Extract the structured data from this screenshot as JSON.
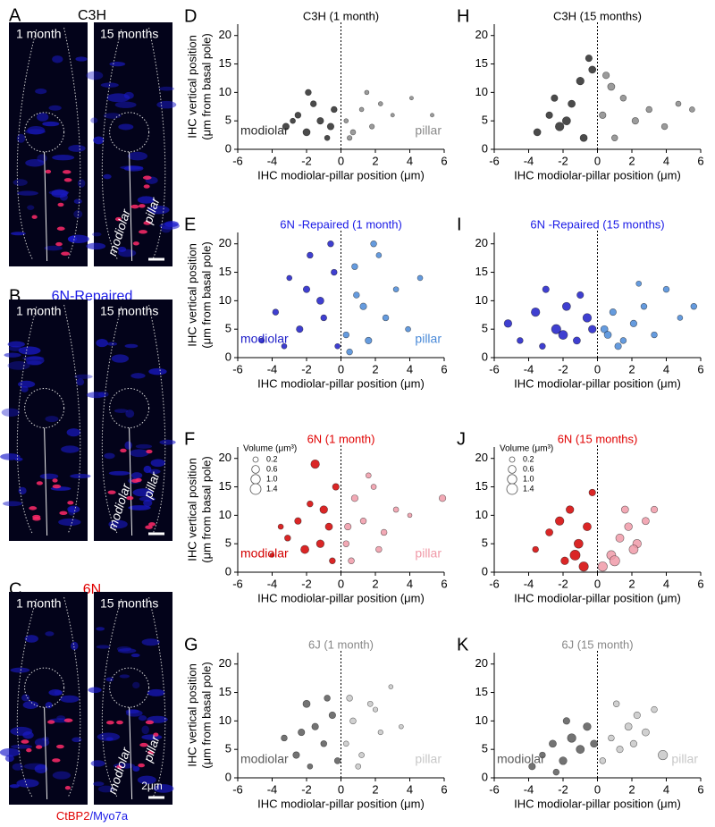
{
  "image_panels": [
    {
      "panel": "A",
      "title": "C3H",
      "left_label": "1 month",
      "right_label": "15 months",
      "annotations": [
        "modiolar",
        "pillar"
      ]
    },
    {
      "panel": "B",
      "title": "6N-Repaired",
      "left_label": "1 month",
      "right_label": "15 months",
      "annotations": [
        "modiolar",
        "pillar"
      ]
    },
    {
      "panel": "C",
      "title": "6N",
      "left_label": "1 month",
      "right_label": "15 months",
      "annotations": [
        "modiolar",
        "pillar"
      ],
      "scale_bar": "2μm"
    }
  ],
  "caption": {
    "red": "CtBP2",
    "blue": "/Myo7a"
  },
  "chart_data": [
    {
      "type": "scatter",
      "panel": "D",
      "title": "C3H (1 month)",
      "title_color": "#000000",
      "ylabel": "IHC vertical position",
      "ylabel_sub": "(μm from basal pole)",
      "xlabel": "IHC modiolar-pillar position (μm)",
      "xlim": [
        -6,
        6
      ],
      "ylim": [
        0,
        22
      ],
      "xticks": [
        -6,
        -4,
        -2,
        0,
        2,
        4,
        6
      ],
      "yticks": [
        0,
        5,
        10,
        15,
        20
      ],
      "series": [
        {
          "name": "modiolar",
          "color": "#2b2b2b",
          "x": [
            -3.2,
            -2.5,
            -2.0,
            -1.6,
            -1.2,
            -0.8,
            -0.4,
            -2.8,
            -1.9,
            -0.6
          ],
          "y": [
            4,
            6,
            3,
            8,
            5,
            2,
            7,
            5,
            10,
            4
          ],
          "sizes": [
            0.4,
            0.3,
            0.5,
            0.3,
            0.4,
            0.2,
            0.3,
            0.2,
            0.3,
            0.4
          ]
        },
        {
          "name": "pillar",
          "color": "#8a8a8a",
          "x": [
            0.3,
            0.7,
            1.2,
            1.8,
            2.3,
            3.0,
            4.1,
            5.3,
            0.5,
            1.5
          ],
          "y": [
            5,
            3,
            7,
            4,
            8,
            6,
            9,
            6,
            2,
            10
          ],
          "sizes": [
            0.1,
            0.2,
            0.1,
            0.15,
            0.1,
            0.05,
            0.05,
            0.05,
            0.15,
            0.1
          ]
        }
      ]
    },
    {
      "type": "scatter",
      "panel": "H",
      "title": "C3H (15 months)",
      "title_color": "#000000",
      "xlabel": "IHC modiolar-pillar position (μm)",
      "xlim": [
        -6,
        6
      ],
      "ylim": [
        0,
        22
      ],
      "xticks": [
        -6,
        -4,
        -2,
        0,
        2,
        4,
        6
      ],
      "yticks": [
        0,
        5,
        10,
        15,
        20
      ],
      "series": [
        {
          "color": "#2b2b2b",
          "x": [
            -3.5,
            -2.8,
            -2.2,
            -1.5,
            -1.0,
            -0.5,
            -0.3,
            -1.8,
            -2.5,
            -0.8
          ],
          "y": [
            3,
            6,
            4,
            8,
            12,
            16,
            14,
            5,
            9,
            2
          ],
          "sizes": [
            0.5,
            0.4,
            0.8,
            0.5,
            0.6,
            0.4,
            0.5,
            0.7,
            0.4,
            0.5
          ]
        },
        {
          "color": "#8a8a8a",
          "x": [
            0.3,
            0.8,
            1.5,
            2.2,
            3.0,
            3.9,
            4.7,
            5.5,
            1.0,
            0.5
          ],
          "y": [
            6,
            11,
            9,
            5,
            7,
            4,
            8,
            7,
            2,
            13
          ],
          "sizes": [
            0.4,
            0.5,
            0.3,
            0.4,
            0.3,
            0.3,
            0.2,
            0.2,
            0.3,
            0.4
          ]
        }
      ]
    },
    {
      "type": "scatter",
      "panel": "E",
      "title": "6N -Repaired (1 month)",
      "title_color": "#1a1ae6",
      "ylabel": "IHC vertical position",
      "ylabel_sub": "(μm from basal pole)",
      "xlabel": "IHC modiolar-pillar position (μm)",
      "xlim": [
        -6,
        6
      ],
      "ylim": [
        0,
        22
      ],
      "xticks": [
        -6,
        -4,
        -2,
        0,
        2,
        4,
        6
      ],
      "yticks": [
        0,
        5,
        10,
        15,
        20
      ],
      "series": [
        {
          "name": "modiolar",
          "color": "#1d1dc8",
          "x": [
            -4.6,
            -3.8,
            -3.0,
            -2.4,
            -1.8,
            -1.2,
            -0.6,
            -0.2,
            -2.0,
            -1.0,
            -3.3,
            -0.4
          ],
          "y": [
            3,
            8,
            14,
            5,
            18,
            10,
            20,
            2,
            12,
            7,
            2,
            15
          ],
          "sizes": [
            0.2,
            0.3,
            0.2,
            0.4,
            0.3,
            0.5,
            0.3,
            0.2,
            0.4,
            0.3,
            0.2,
            0.3
          ]
        },
        {
          "name": "pillar",
          "color": "#4a8ad8",
          "x": [
            0.3,
            0.8,
            1.3,
            1.9,
            2.6,
            3.2,
            3.9,
            4.6,
            0.5,
            1.6,
            2.2,
            0.9
          ],
          "y": [
            4,
            16,
            9,
            20,
            7,
            12,
            5,
            14,
            1,
            3,
            18,
            11
          ],
          "sizes": [
            0.3,
            0.3,
            0.4,
            0.3,
            0.3,
            0.2,
            0.2,
            0.2,
            0.3,
            0.4,
            0.2,
            0.3
          ]
        }
      ]
    },
    {
      "type": "scatter",
      "panel": "I",
      "title": "6N -Repaired (15 months)",
      "title_color": "#1a1ae6",
      "xlabel": "IHC modiolar-pillar position (μm)",
      "xlim": [
        -6,
        6
      ],
      "ylim": [
        0,
        22
      ],
      "xticks": [
        -6,
        -4,
        -2,
        0,
        2,
        4,
        6
      ],
      "yticks": [
        0,
        5,
        10,
        15,
        20
      ],
      "series": [
        {
          "color": "#1d1dc8",
          "x": [
            -5.2,
            -4.5,
            -3.6,
            -3.0,
            -2.4,
            -1.8,
            -1.2,
            -0.6,
            -2.0,
            -1.0,
            -3.2,
            -0.3
          ],
          "y": [
            6,
            3,
            8,
            12,
            5,
            9,
            3,
            7,
            4,
            11,
            2,
            5
          ],
          "sizes": [
            0.6,
            0.3,
            0.8,
            0.4,
            1.0,
            0.7,
            0.5,
            0.8,
            0.9,
            0.4,
            0.3,
            0.6
          ]
        },
        {
          "color": "#4a8ad8",
          "x": [
            0.4,
            0.9,
            1.5,
            2.1,
            2.7,
            3.3,
            4.0,
            4.8,
            5.6,
            1.2,
            2.4,
            0.6
          ],
          "y": [
            5,
            8,
            3,
            6,
            9,
            4,
            12,
            7,
            9,
            2,
            13,
            4
          ],
          "sizes": [
            0.5,
            0.4,
            0.3,
            0.4,
            0.3,
            0.3,
            0.3,
            0.2,
            0.3,
            0.4,
            0.2,
            0.5
          ]
        }
      ]
    },
    {
      "type": "scatter",
      "panel": "F",
      "title": "6N (1 month)",
      "title_color": "#e00000",
      "ylabel": "IHC vertical position",
      "ylabel_sub": "(μm from basal pole)",
      "xlabel": "IHC modiolar-pillar position (μm)",
      "xlim": [
        -6,
        6
      ],
      "ylim": [
        0,
        22
      ],
      "xticks": [
        -6,
        -4,
        -2,
        0,
        2,
        4,
        6
      ],
      "yticks": [
        0,
        5,
        10,
        15,
        20
      ],
      "size_legend": {
        "title": "Volume (μm³)",
        "values": [
          0.2,
          0.6,
          {
            "value": 1,
            "label": "1.0"
          },
          1.4
        ]
      },
      "series": [
        {
          "name": "modiolar",
          "color": "#d40000",
          "x": [
            -4.0,
            -3.1,
            -2.5,
            -1.8,
            -1.2,
            -0.7,
            -0.3,
            -2.1,
            -1.5,
            -0.5,
            -3.5,
            -1.0
          ],
          "y": [
            3,
            6,
            9,
            12,
            5,
            8,
            15,
            4,
            19,
            2,
            8,
            11
          ],
          "sizes": [
            0.1,
            0.3,
            0.4,
            0.3,
            0.6,
            0.5,
            0.4,
            0.7,
            0.8,
            0.3,
            0.2,
            0.6
          ]
        },
        {
          "name": "pillar",
          "color": "#f09aa8",
          "x": [
            0.3,
            0.8,
            1.3,
            1.9,
            2.5,
            3.2,
            4.0,
            5.9,
            0.6,
            1.6,
            2.2,
            0.4
          ],
          "y": [
            5,
            13,
            9,
            15,
            7,
            11,
            10,
            13,
            2,
            17,
            4,
            8
          ],
          "sizes": [
            0.3,
            0.4,
            0.3,
            0.2,
            0.3,
            0.2,
            0.1,
            0.4,
            0.3,
            0.2,
            0.3,
            0.4
          ]
        }
      ]
    },
    {
      "type": "scatter",
      "panel": "J",
      "title": "6N (15 months)",
      "title_color": "#e00000",
      "xlabel": "IHC modiolar-pillar position (μm)",
      "xlim": [
        -6,
        6
      ],
      "ylim": [
        0,
        22
      ],
      "xticks": [
        -6,
        -4,
        -2,
        0,
        2,
        4,
        6
      ],
      "yticks": [
        0,
        5,
        10,
        15,
        20
      ],
      "size_legend": {
        "title": "Volume (μm³)",
        "values": [
          0.2,
          0.6,
          {
            "value": 1,
            "label": "1.0"
          },
          1.4
        ]
      },
      "series": [
        {
          "color": "#d40000",
          "x": [
            -3.6,
            -2.8,
            -2.2,
            -1.6,
            -1.1,
            -0.6,
            -0.3,
            -1.9,
            -1.3,
            -0.8
          ],
          "y": [
            4,
            7,
            9,
            11,
            5,
            8,
            14,
            2,
            3,
            1
          ],
          "sizes": [
            0.3,
            0.5,
            0.8,
            0.6,
            0.9,
            0.7,
            0.4,
            0.6,
            1.2,
            1.0
          ]
        },
        {
          "color": "#f09aa8",
          "x": [
            0.3,
            0.8,
            1.3,
            1.8,
            2.3,
            2.8,
            3.3,
            1.0,
            1.6,
            2.1
          ],
          "y": [
            1,
            3,
            6,
            8,
            5,
            9,
            11,
            2,
            11,
            4
          ],
          "sizes": [
            1.0,
            0.9,
            0.7,
            0.6,
            0.8,
            0.5,
            0.4,
            1.2,
            0.5,
            0.9
          ]
        }
      ]
    },
    {
      "type": "scatter",
      "panel": "G",
      "title": "6J (1 month)",
      "title_color": "#888888",
      "ylabel": "IHC vertical position",
      "ylabel_sub": "(μm from basal pole)",
      "xlabel": "IHC modiolar-pillar position (μm)",
      "xlim": [
        -6,
        6
      ],
      "ylim": [
        0,
        22
      ],
      "xticks": [
        -6,
        -4,
        -2,
        0,
        2,
        4,
        6
      ],
      "yticks": [
        0,
        5,
        10,
        15,
        20
      ],
      "series": [
        {
          "name": "modiolar",
          "color": "#5a5a5a",
          "x": [
            -3.3,
            -2.6,
            -2.0,
            -1.5,
            -1.0,
            -0.5,
            -0.2,
            -1.8,
            -2.3,
            -0.8
          ],
          "y": [
            7,
            4,
            13,
            9,
            6,
            11,
            3,
            2,
            8,
            14
          ],
          "sizes": [
            0.3,
            0.4,
            0.5,
            0.4,
            0.3,
            0.4,
            0.3,
            0.2,
            0.4,
            0.3
          ]
        },
        {
          "name": "pillar",
          "color": "#c8c8c8",
          "x": [
            0.3,
            0.7,
            1.2,
            1.7,
            2.3,
            2.9,
            3.5,
            1.0,
            2.0,
            0.5
          ],
          "y": [
            6,
            10,
            4,
            13,
            8,
            16,
            9,
            2,
            12,
            14
          ],
          "sizes": [
            0.2,
            0.3,
            0.2,
            0.2,
            0.15,
            0.1,
            0.1,
            0.2,
            0.15,
            0.3
          ]
        }
      ]
    },
    {
      "type": "scatter",
      "panel": "K",
      "title": "6J (15 month)",
      "title_color": "#888888",
      "xlabel": "IHC modiolar-pillar position (μm)",
      "xlim": [
        -6,
        6
      ],
      "ylim": [
        0,
        22
      ],
      "xticks": [
        -6,
        -4,
        -2,
        0,
        2,
        4,
        6
      ],
      "yticks": [
        0,
        5,
        10,
        15,
        20
      ],
      "series": [
        {
          "name": "modiolar",
          "color": "#5a5a5a",
          "x": [
            -3.8,
            -3.2,
            -2.6,
            -2.0,
            -1.5,
            -1.0,
            -0.6,
            -0.2,
            -1.8,
            -2.4
          ],
          "y": [
            2,
            4,
            6,
            3,
            7,
            5,
            9,
            6,
            10,
            1
          ],
          "sizes": [
            0.4,
            0.3,
            0.5,
            0.6,
            0.8,
            0.7,
            0.6,
            0.5,
            0.4,
            0.3
          ]
        },
        {
          "name": "pillar",
          "color": "#c8c8c8",
          "x": [
            0.3,
            0.8,
            1.3,
            1.8,
            2.3,
            2.8,
            3.3,
            3.8,
            1.1,
            2.1
          ],
          "y": [
            3,
            7,
            5,
            9,
            11,
            8,
            12,
            4,
            13,
            6
          ],
          "sizes": [
            0.3,
            0.3,
            0.4,
            0.5,
            0.4,
            0.5,
            0.3,
            1.0,
            0.3,
            0.4
          ]
        }
      ]
    }
  ]
}
